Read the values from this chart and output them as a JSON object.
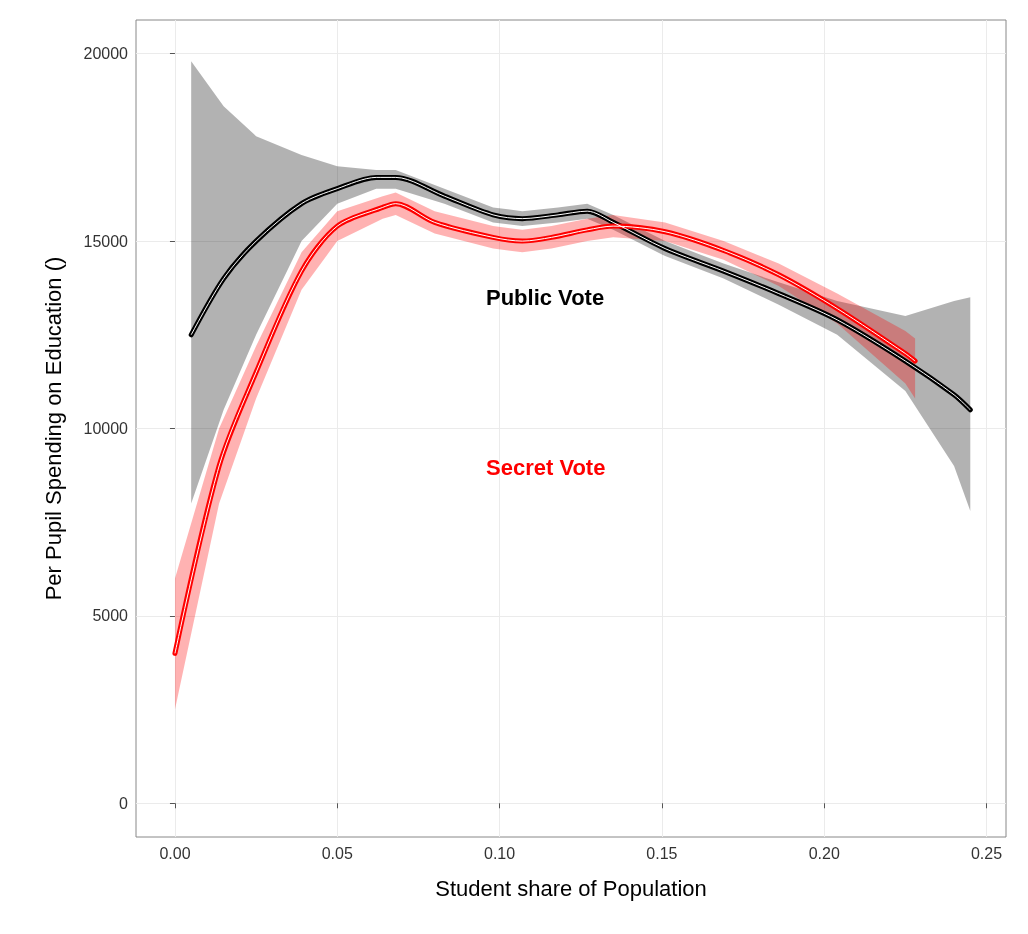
{
  "chart_data": {
    "type": "line",
    "xlabel": "Student share of Population",
    "ylabel": "Per Pupil Spending on Education ()",
    "xlim": [
      -0.012,
      0.256
    ],
    "ylim": [
      -900,
      20900
    ],
    "xticks": [
      {
        "value": 0,
        "label": "0.00"
      },
      {
        "value": 0.05,
        "label": "0.05"
      },
      {
        "value": 0.1,
        "label": "0.10"
      },
      {
        "value": 0.15,
        "label": "0.15"
      },
      {
        "value": 0.2,
        "label": "0.20"
      },
      {
        "value": 0.25,
        "label": "0.25"
      }
    ],
    "yticks": [
      0,
      5000,
      10000,
      15000,
      20000
    ],
    "grid": true,
    "legend": false,
    "marker": "none",
    "line_style": "solid",
    "series": [
      {
        "name": "Public Vote",
        "color": "#000000",
        "x": [
          0.005,
          0.015,
          0.025,
          0.039,
          0.05,
          0.062,
          0.068,
          0.083,
          0.098,
          0.107,
          0.118,
          0.127,
          0.135,
          0.151,
          0.169,
          0.186,
          0.204,
          0.225,
          0.24,
          0.245
        ],
        "values": [
          12500,
          14000,
          15000,
          16000,
          16400,
          16700,
          16700,
          16200,
          15700,
          15600,
          15700,
          15800,
          15500,
          14800,
          14200,
          13600,
          12900,
          11800,
          10900,
          10500
        ],
        "lower": [
          8000,
          10500,
          12500,
          15000,
          16000,
          16400,
          16400,
          16000,
          15500,
          15400,
          15500,
          15600,
          15300,
          14600,
          14000,
          13300,
          12500,
          11000,
          9000,
          7800
        ],
        "upper": [
          19800,
          18600,
          17800,
          17300,
          17000,
          16900,
          16900,
          16400,
          15900,
          15800,
          15900,
          16000,
          15700,
          15000,
          14400,
          13900,
          13400,
          13000,
          13400,
          13500
        ]
      },
      {
        "name": "Secret Vote",
        "color": "#ff0000",
        "x": [
          0,
          0.0136,
          0.025,
          0.039,
          0.05,
          0.064,
          0.068,
          0.08,
          0.098,
          0.107,
          0.116,
          0.127,
          0.135,
          0.151,
          0.169,
          0.186,
          0.204,
          0.225,
          0.228
        ],
        "values": [
          4000,
          9000,
          11500,
          14200,
          15400,
          15900,
          16000,
          15500,
          15100,
          15000,
          15100,
          15300,
          15400,
          15250,
          14750,
          14100,
          13200,
          12000,
          11800
        ],
        "lower": [
          2500,
          8000,
          10800,
          13700,
          15000,
          15600,
          15700,
          15200,
          14800,
          14700,
          14800,
          15000,
          15100,
          15000,
          14500,
          13800,
          12800,
          11200,
          10800
        ],
        "upper": [
          6000,
          10000,
          12200,
          14700,
          15800,
          16200,
          16300,
          15800,
          15400,
          15300,
          15400,
          15600,
          15700,
          15500,
          15000,
          14400,
          13600,
          12600,
          12400
        ]
      }
    ]
  }
}
